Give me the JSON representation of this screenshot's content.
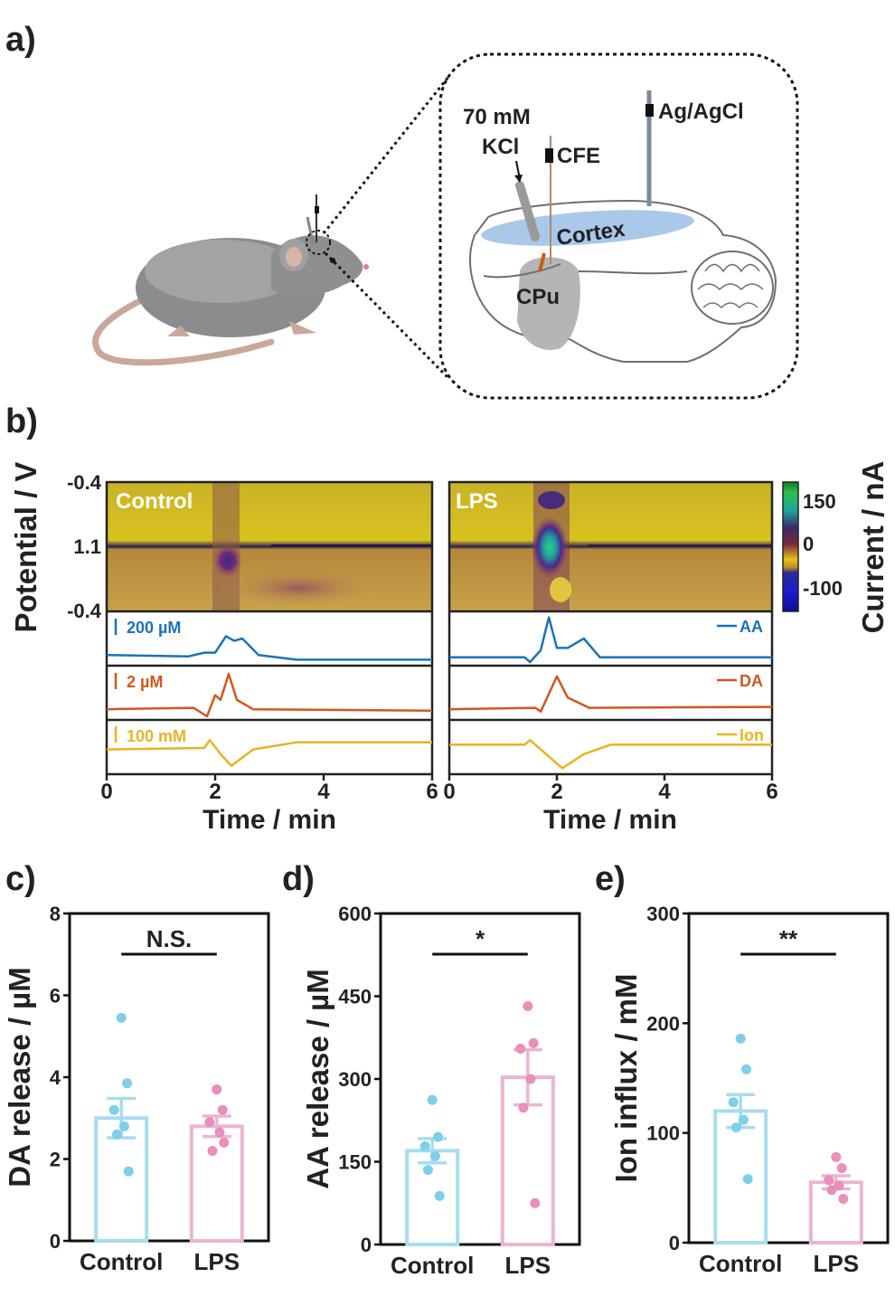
{
  "panel_labels": [
    "a)",
    "b)",
    "c)",
    "d)",
    "e)"
  ],
  "schematic": {
    "kcl_conc": "70 mM",
    "kcl": "KCl",
    "cfe": "CFE",
    "ref": "Ag/AgCl",
    "cortex": "Cortex",
    "cpu": "CPu"
  },
  "colors": {
    "control": "#a8dcef",
    "control_point": "#7fcfe9",
    "lps": "#eab6cf",
    "lps_point": "#e88fbb",
    "aa": "#1a73b8",
    "da": "#d4561f",
    "ion": "#e8b321"
  },
  "panel_b": {
    "ylabel": "Potential / V",
    "colorbar_label": "Current / nA",
    "colorbar_ticks": [
      "150",
      "0",
      "-100"
    ],
    "potential_ticks": [
      "-0.4",
      "1.1",
      "-0.4"
    ],
    "xlabel": "Time / min",
    "panels": [
      {
        "title": "Control",
        "xticks": [
          "0",
          "2",
          "4",
          "6"
        ]
      },
      {
        "title": "LPS",
        "xticks": [
          "0",
          "2",
          "4",
          "6"
        ]
      }
    ],
    "scale_bars": {
      "aa": "200 µM",
      "da": "2 µM",
      "ion": "100 mM"
    },
    "legend": {
      "aa": "AA",
      "da": "DA",
      "ion": "Ion"
    }
  },
  "chart_data": [
    {
      "type": "line",
      "title": "Control",
      "xlabel": "Time / min",
      "xlim": [
        0,
        6
      ],
      "series": [
        {
          "name": "AA",
          "x": [
            0,
            1.5,
            1.8,
            1.85,
            2.0,
            2.2,
            2.35,
            2.5,
            2.8,
            3.5,
            6
          ],
          "y": [
            0.15,
            0.12,
            0.2,
            0.2,
            0.2,
            0.55,
            0.45,
            0.5,
            0.15,
            0.05,
            0.05
          ]
        },
        {
          "name": "DA",
          "x": [
            0,
            1.6,
            1.85,
            2.0,
            2.1,
            2.25,
            2.4,
            2.7,
            6
          ],
          "y": [
            0.15,
            0.18,
            0.0,
            0.45,
            0.35,
            0.9,
            0.35,
            0.15,
            0.12
          ]
        },
        {
          "name": "Ion",
          "x": [
            0,
            1.8,
            1.9,
            2.1,
            2.3,
            2.7,
            3.5,
            6
          ],
          "y": [
            0.45,
            0.48,
            0.65,
            0.35,
            0.1,
            0.45,
            0.6,
            0.6
          ]
        }
      ]
    },
    {
      "type": "line",
      "title": "LPS",
      "xlabel": "Time / min",
      "xlim": [
        0,
        6
      ],
      "series": [
        {
          "name": "AA",
          "x": [
            0,
            1.4,
            1.5,
            1.7,
            1.85,
            2.0,
            2.2,
            2.5,
            2.8,
            6
          ],
          "y": [
            0.1,
            0.1,
            0.0,
            0.25,
            0.95,
            0.3,
            0.3,
            0.5,
            0.1,
            0.1
          ]
        },
        {
          "name": "DA",
          "x": [
            0,
            1.6,
            1.7,
            1.8,
            2.0,
            2.2,
            2.6,
            6
          ],
          "y": [
            0.15,
            0.18,
            0.1,
            0.35,
            0.85,
            0.4,
            0.18,
            0.2
          ]
        },
        {
          "name": "Ion",
          "x": [
            0,
            1.4,
            1.5,
            1.7,
            2.1,
            2.5,
            3.0,
            6
          ],
          "y": [
            0.55,
            0.55,
            0.65,
            0.45,
            0.05,
            0.35,
            0.55,
            0.55
          ]
        }
      ]
    },
    {
      "type": "bar",
      "ylabel": "DA release / µM",
      "categories": [
        "Control",
        "LPS"
      ],
      "values": [
        3.0,
        2.8
      ],
      "errors": [
        0.48,
        0.25
      ],
      "points": [
        [
          5.45,
          3.85,
          3.2,
          2.8,
          2.6,
          1.7
        ],
        [
          3.7,
          3.2,
          2.9,
          2.65,
          2.2,
          2.4
        ]
      ],
      "ylim": [
        0,
        8
      ],
      "yticks": [
        0,
        2,
        4,
        6,
        8
      ],
      "significance": "N.S."
    },
    {
      "type": "bar",
      "ylabel": "AA release / µM",
      "categories": [
        "Control",
        "LPS"
      ],
      "values": [
        170,
        303
      ],
      "errors": [
        22,
        50
      ],
      "points": [
        [
          262,
          195,
          178,
          160,
          135,
          88
        ],
        [
          432,
          365,
          355,
          300,
          248,
          75
        ]
      ],
      "ylim": [
        0,
        600
      ],
      "yticks": [
        0,
        150,
        300,
        450,
        600
      ],
      "significance": "*"
    },
    {
      "type": "bar",
      "ylabel": "Ion influx / mM",
      "categories": [
        "Control",
        "LPS"
      ],
      "values": [
        120,
        55
      ],
      "errors": [
        15,
        6
      ],
      "points": [
        [
          186,
          158,
          128,
          112,
          105,
          58
        ],
        [
          78,
          68,
          57,
          52,
          48,
          40
        ]
      ],
      "ylim": [
        0,
        300
      ],
      "yticks": [
        0,
        100,
        200,
        300
      ],
      "significance": "**"
    }
  ]
}
